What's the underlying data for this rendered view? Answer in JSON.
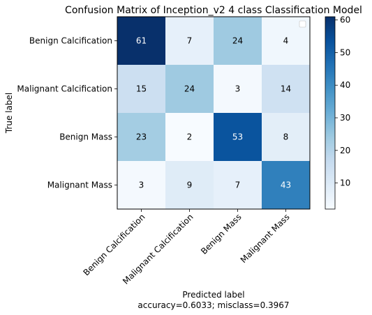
{
  "chart_data": {
    "type": "heatmap",
    "title": "Confusion Matrix of Inception_v2 4 class Classification Model",
    "ylabel": "True label",
    "xlabel": "Predicted label",
    "xlabel_sub": "accuracy=0.6033; misclass=0.3967",
    "row_labels": [
      "Benign Calcification",
      "Malignant Calcification",
      "Benign Mass",
      "Malignant Mass"
    ],
    "col_labels": [
      "Benign Calcification",
      "Malignant Calcification",
      "Benign Mass",
      "Malignant Mass"
    ],
    "values": [
      [
        61,
        7,
        24,
        4
      ],
      [
        15,
        24,
        3,
        14
      ],
      [
        23,
        2,
        53,
        8
      ],
      [
        3,
        9,
        7,
        43
      ]
    ],
    "colormap": "Blues",
    "colorbar": {
      "min": 2,
      "max": 61,
      "ticks": [
        10,
        20,
        30,
        40,
        50,
        60
      ]
    },
    "legend": "empty box, top-right"
  }
}
